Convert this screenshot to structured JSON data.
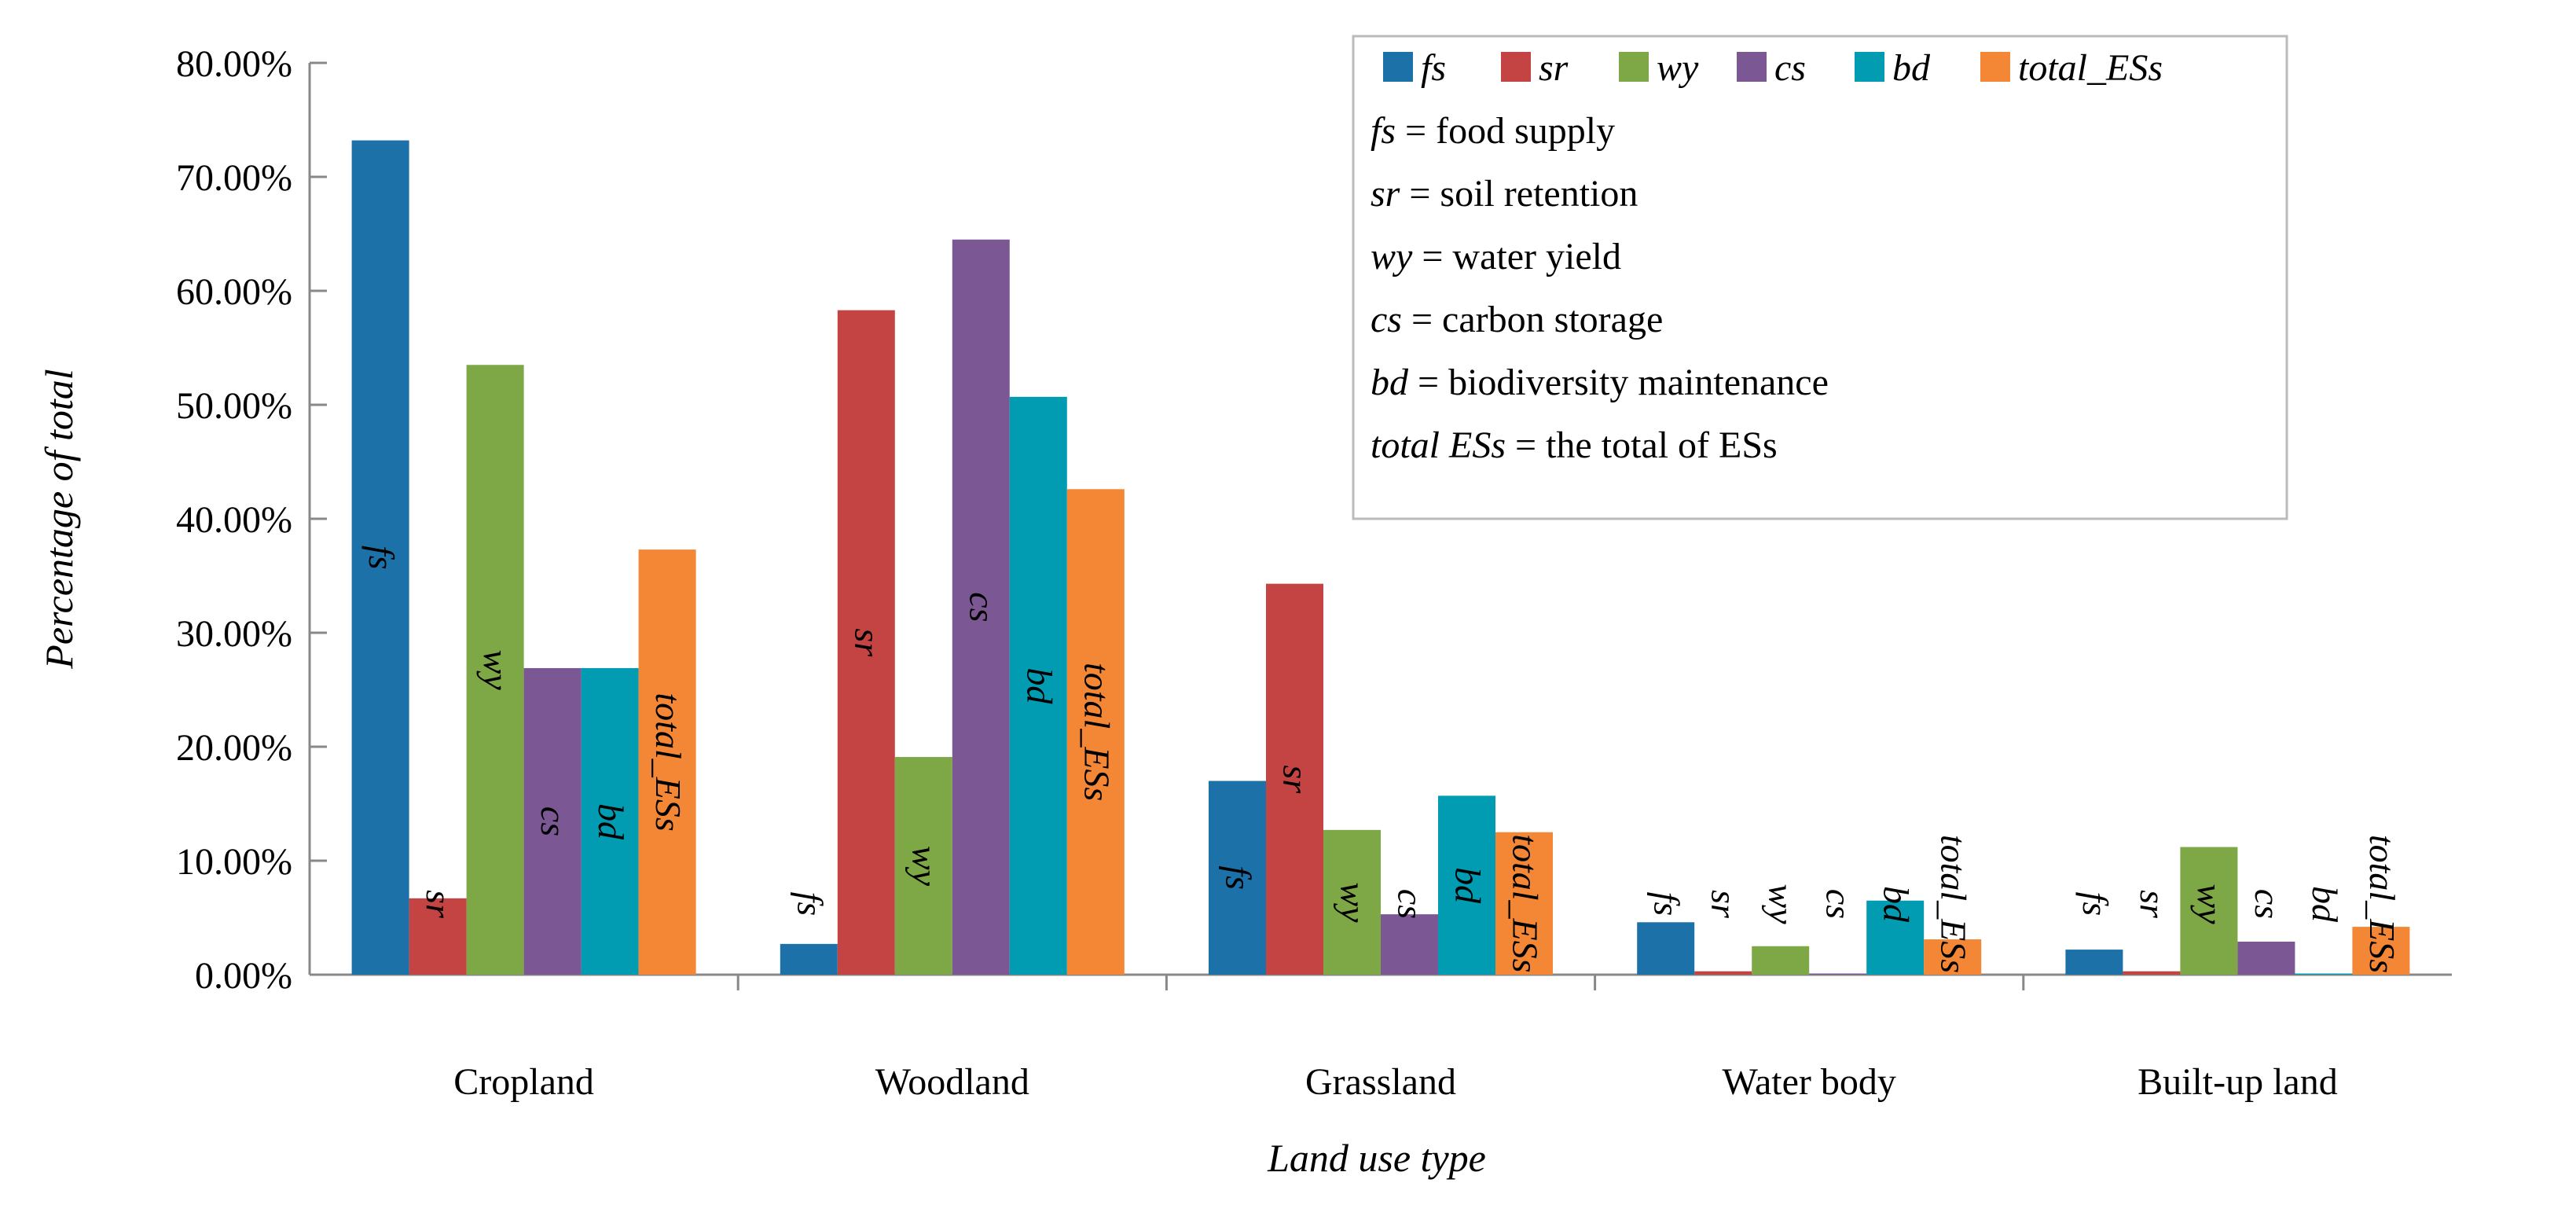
{
  "chart_data": {
    "type": "bar",
    "title": "",
    "xlabel": "Land use type",
    "ylabel": "Percentage of total",
    "ylim": [
      0,
      80
    ],
    "yticks": [
      "0.00%",
      "10.00%",
      "20.00%",
      "30.00%",
      "40.00%",
      "50.00%",
      "60.00%",
      "70.00%",
      "80.00%"
    ],
    "categories": [
      "Cropland",
      "Woodland",
      "Grassland",
      "Water body",
      "Built-up land"
    ],
    "series": [
      {
        "name": "fs",
        "color": "#1c71a8",
        "values": [
          73.2,
          2.7,
          17.0,
          4.6,
          2.2
        ]
      },
      {
        "name": "sr",
        "color": "#c44444",
        "values": [
          6.7,
          58.3,
          34.3,
          0.3,
          0.3
        ]
      },
      {
        "name": "wy",
        "color": "#7ea745",
        "values": [
          53.5,
          19.1,
          12.7,
          2.5,
          11.2
        ]
      },
      {
        "name": "cs",
        "color": "#7b5893",
        "values": [
          26.9,
          64.5,
          5.3,
          0.1,
          2.9
        ]
      },
      {
        "name": "bd",
        "color": "#019bb2",
        "values": [
          26.9,
          50.7,
          15.7,
          6.5,
          0.1
        ]
      },
      {
        "name": "total_ESs",
        "color": "#f48736",
        "values": [
          37.3,
          42.6,
          12.5,
          3.1,
          4.2
        ]
      }
    ],
    "legend_position": "top-right",
    "legend_notes": [
      {
        "abbr": "fs",
        "text": " = food supply"
      },
      {
        "abbr": "sr",
        "text": " = soil retention"
      },
      {
        "abbr": "wy",
        "text": " = water yield"
      },
      {
        "abbr": "cs",
        "text": " = carbon storage"
      },
      {
        "abbr": "bd",
        "text": " = biodiversity maintenance"
      },
      {
        "abbr": "total ESs",
        "text": " = the total of ESs"
      }
    ],
    "grid": false
  }
}
